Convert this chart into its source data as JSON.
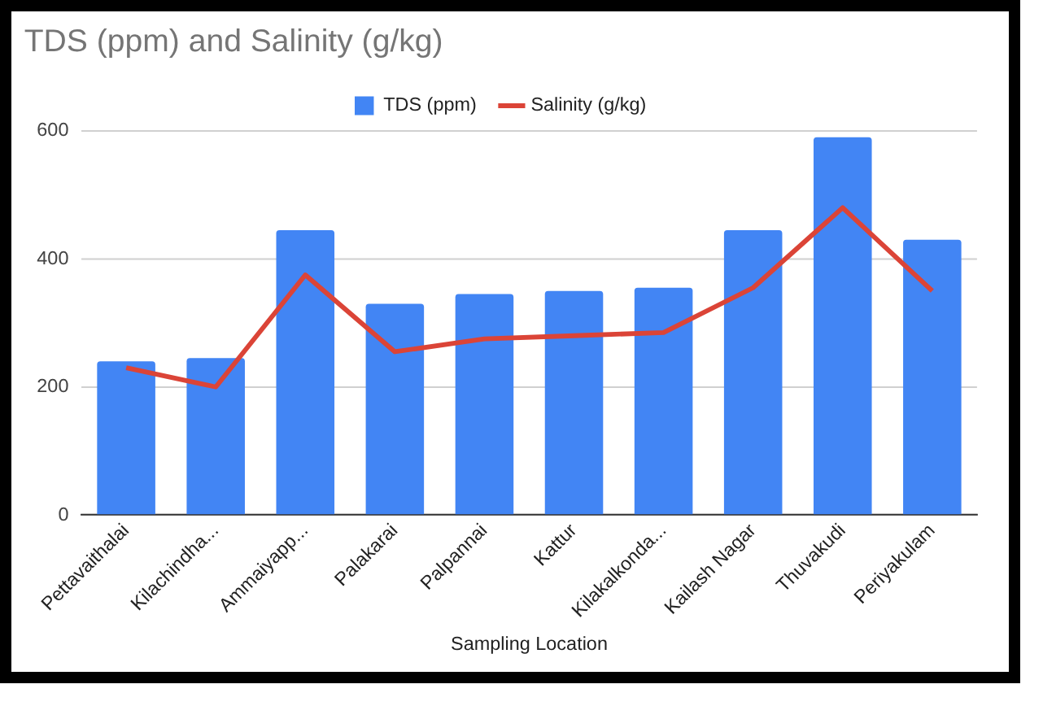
{
  "chart_data": {
    "type": "bar",
    "title": "TDS (ppm) and Salinity (g/kg)",
    "xlabel": "Sampling Location",
    "categories": [
      "Pettavaithalai",
      "Kilachindha...",
      "Ammaiyapp...",
      "Palakarai",
      "Palpannai",
      "Kattur",
      "Kilakalkonda...",
      "Kailash Nagar",
      "Thuvakudi",
      "Periyakulam"
    ],
    "series": [
      {
        "name": "TDS (ppm)",
        "color": "#4285f4",
        "values": [
          240,
          245,
          445,
          330,
          345,
          350,
          355,
          445,
          590,
          430
        ]
      },
      {
        "name": "Salinity (g/kg)",
        "type": "line",
        "color": "#db4437",
        "values": [
          230,
          200,
          375,
          255,
          275,
          280,
          285,
          355,
          480,
          350
        ]
      }
    ],
    "ylim": [
      0,
      600
    ],
    "yticks": [
      0,
      200,
      400,
      600
    ],
    "grid": "y",
    "legend": "top",
    "marker": "none"
  }
}
